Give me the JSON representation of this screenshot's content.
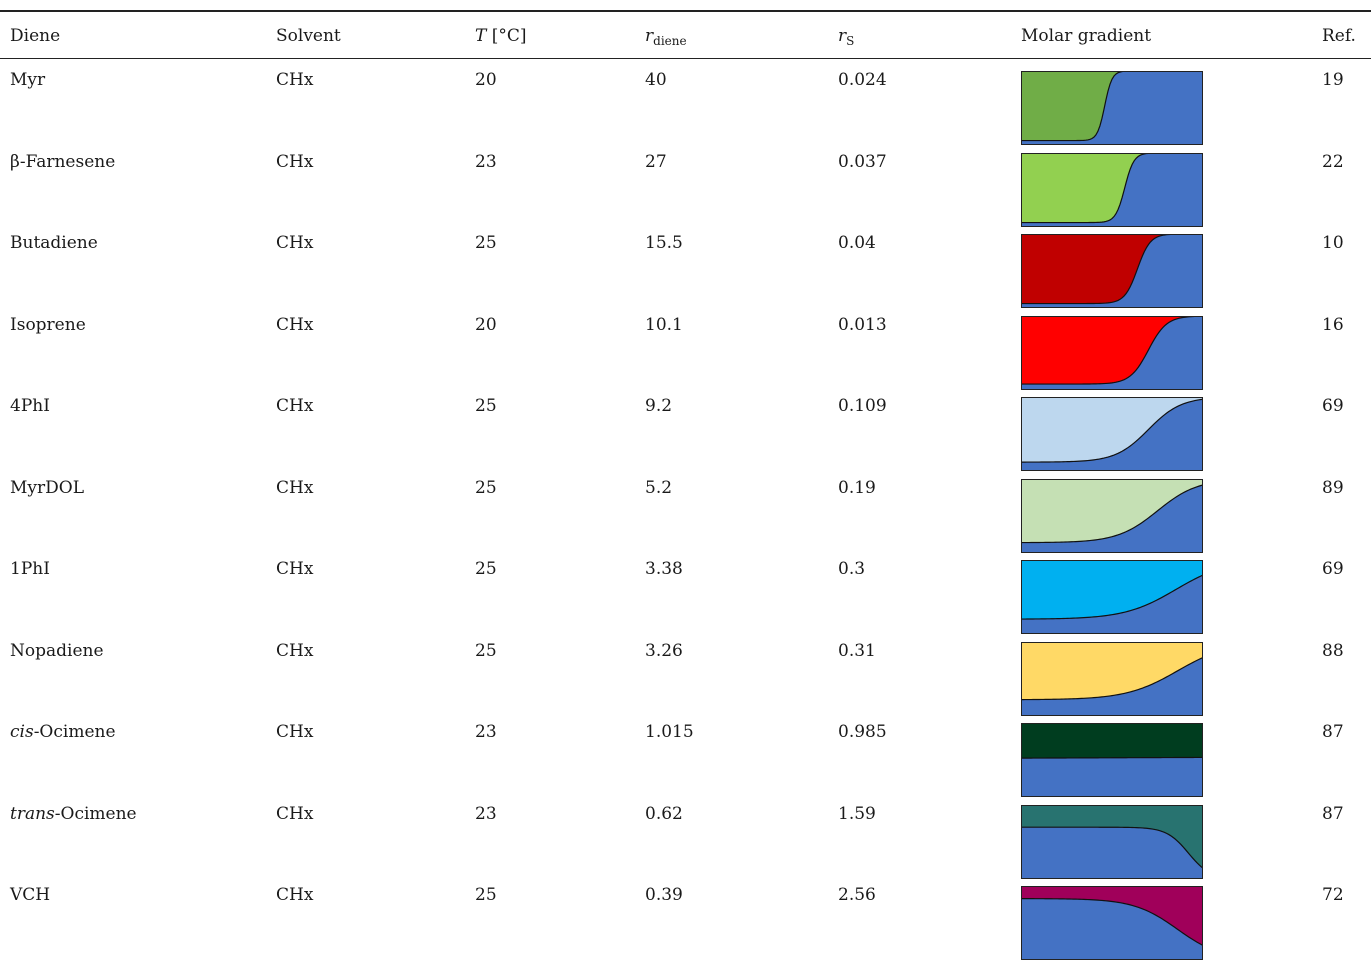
{
  "columns": {
    "diene": "Diene",
    "solvent": "Solvent",
    "temp_symbol": "T",
    "temp_unit": "[°C]",
    "r_diene_symbol": "r",
    "r_diene_sub": "diene",
    "r_s_symbol": "r",
    "r_s_sub": "S",
    "gradient": "Molar gradient",
    "ref": "Ref."
  },
  "rows": [
    {
      "prefix": "",
      "italic": "",
      "name": "Myr",
      "solvent": "CHx",
      "T": "20",
      "r_diene": "40",
      "r_s": "0.024",
      "ref": "19",
      "color": "#70AD47",
      "gradient_mid": 0.46,
      "gradient_width": 0.02,
      "gradient_low": 0.06,
      "gradient_high": 1.0
    },
    {
      "prefix": "",
      "italic": "",
      "name": "β-Farnesene",
      "solvent": "CHx",
      "T": "23",
      "r_diene": "27",
      "r_s": "0.037",
      "ref": "22",
      "color": "#92D050",
      "gradient_mid": 0.57,
      "gradient_width": 0.025,
      "gradient_low": 0.06,
      "gradient_high": 1.0
    },
    {
      "prefix": "",
      "italic": "",
      "name": "Butadiene",
      "solvent": "CHx",
      "T": "25",
      "r_diene": "15.5",
      "r_s": "0.04",
      "ref": "10",
      "color": "#C00000",
      "gradient_mid": 0.64,
      "gradient_width": 0.035,
      "gradient_low": 0.06,
      "gradient_high": 1.0
    },
    {
      "prefix": "",
      "italic": "",
      "name": "Isoprene",
      "solvent": "CHx",
      "T": "20",
      "r_diene": "10.1",
      "r_s": "0.013",
      "ref": "16",
      "color": "#FF0000",
      "gradient_mid": 0.7,
      "gradient_width": 0.05,
      "gradient_low": 0.08,
      "gradient_high": 1.0
    },
    {
      "prefix": "",
      "italic": "",
      "name": "4PhI",
      "solvent": "CHx",
      "T": "25",
      "r_diene": "9.2",
      "r_s": "0.109",
      "ref": "69",
      "color": "#BDD7EE",
      "gradient_mid": 0.7,
      "gradient_width": 0.09,
      "gradient_low": 0.12,
      "gradient_high": 1.0
    },
    {
      "prefix": "",
      "italic": "",
      "name": "MyrDOL",
      "solvent": "CHx",
      "T": "25",
      "r_diene": "5.2",
      "r_s": "0.19",
      "ref": "89",
      "color": "#C5E0B4",
      "gradient_mid": 0.75,
      "gradient_width": 0.11,
      "gradient_low": 0.14,
      "gradient_high": 1.0
    },
    {
      "prefix": "",
      "italic": "",
      "name": "1PhI",
      "solvent": "CHx",
      "T": "25",
      "r_diene": "3.38",
      "r_s": "0.3",
      "ref": "69",
      "color": "#00B0F0",
      "gradient_mid": 0.85,
      "gradient_width": 0.14,
      "gradient_low": 0.2,
      "gradient_high": 1.0
    },
    {
      "prefix": "",
      "italic": "",
      "name": "Nopadiene",
      "solvent": "CHx",
      "T": "25",
      "r_diene": "3.26",
      "r_s": "0.31",
      "ref": "88",
      "color": "#FFD966",
      "gradient_mid": 0.86,
      "gradient_width": 0.14,
      "gradient_low": 0.22,
      "gradient_high": 1.0
    },
    {
      "prefix": "",
      "italic": "cis",
      "name": "-Ocimene",
      "solvent": "CHx",
      "T": "23",
      "r_diene": "1.015",
      "r_s": "0.985",
      "ref": "87",
      "color": "#003D1F",
      "gradient_mid": 0.5,
      "gradient_width": 0.5,
      "gradient_low": 0.52,
      "gradient_high": 0.54
    },
    {
      "prefix": "",
      "italic": "trans",
      "name": "-Ocimene",
      "solvent": "CHx",
      "T": "23",
      "r_diene": "0.62",
      "r_s": "1.59",
      "ref": "87",
      "color": "#287370",
      "gradient_mid": 0.92,
      "gradient_width": 0.06,
      "gradient_low": 0.7,
      "gradient_high": 0.0
    },
    {
      "prefix": "",
      "italic": "",
      "name": "VCH",
      "solvent": "CHx",
      "T": "25",
      "r_diene": "0.39",
      "r_s": "2.56",
      "ref": "72",
      "color": "#A0005A",
      "gradient_mid": 0.86,
      "gradient_width": 0.12,
      "gradient_low": 0.83,
      "gradient_high": 0.0
    }
  ],
  "comonomer_color": "#4472C4"
}
